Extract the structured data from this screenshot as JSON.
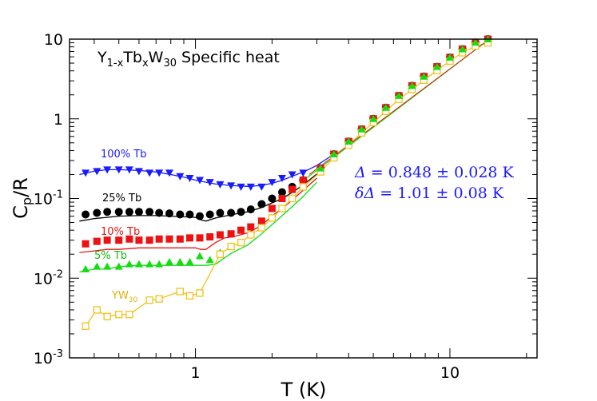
{
  "chart_data": {
    "type": "scatter",
    "scale": "log-log",
    "title": {
      "base": "Y",
      "sub1": "1-x",
      "mid1": "Tb",
      "sub2": "x",
      "mid2": "W",
      "sub3": "30",
      "rest": " Specific heat"
    },
    "xlabel": "T (K)",
    "ylabel": {
      "base": "C",
      "sub": "p",
      "rest": "/R"
    },
    "xlim": [
      0.32,
      22
    ],
    "ylim": [
      0.001,
      10
    ],
    "x_ticks": [
      {
        "value": 1,
        "label": "1"
      },
      {
        "value": 10,
        "label": "10"
      }
    ],
    "y_ticks": [
      {
        "value": 10,
        "base": "10",
        "exp": ""
      },
      {
        "value": 1,
        "base": "1",
        "exp": ""
      },
      {
        "value": 0.1,
        "base": "10",
        "exp": "-1"
      },
      {
        "value": 0.01,
        "base": "10",
        "exp": "-2"
      },
      {
        "value": 0.001,
        "base": "10",
        "exp": "-3"
      }
    ],
    "annotations": {
      "line1": {
        "sym": "Δ",
        "rest": " = 0.848 ± 0.028 K"
      },
      "line2": {
        "sym": "δΔ",
        "rest": " = 1.01 ± 0.08 K"
      }
    },
    "series": [
      {
        "name": "100% Tb",
        "label": "100% Tb",
        "color": "#1a1aff",
        "marker": "triangle-down",
        "x": [
          0.37,
          0.41,
          0.45,
          0.5,
          0.55,
          0.6,
          0.66,
          0.72,
          0.79,
          0.87,
          0.95,
          1.04,
          1.14,
          1.25,
          1.38,
          1.51,
          1.65,
          1.82,
          2.0,
          2.19,
          2.4,
          2.65
        ],
        "y": [
          0.21,
          0.22,
          0.23,
          0.23,
          0.23,
          0.22,
          0.21,
          0.21,
          0.21,
          0.19,
          0.18,
          0.17,
          0.16,
          0.15,
          0.145,
          0.14,
          0.14,
          0.14,
          0.16,
          0.18,
          0.2,
          0.21
        ],
        "fit": {
          "x": [
            0.35,
            0.4,
            0.45,
            0.5,
            0.6,
            0.7,
            0.8,
            0.9,
            1.0,
            1.1,
            1.2,
            1.4,
            1.6,
            1.8,
            2.0,
            2.2,
            2.4,
            2.7,
            3.0,
            3.5
          ],
          "y": [
            0.2,
            0.22,
            0.23,
            0.23,
            0.225,
            0.215,
            0.2,
            0.185,
            0.17,
            0.16,
            0.152,
            0.145,
            0.142,
            0.145,
            0.155,
            0.17,
            0.19,
            0.22,
            0.26,
            0.36
          ]
        }
      },
      {
        "name": "25% Tb",
        "label": "25% Tb",
        "color": "#000000",
        "marker": "circle",
        "x": [
          0.37,
          0.41,
          0.45,
          0.5,
          0.55,
          0.6,
          0.66,
          0.72,
          0.79,
          0.87,
          0.95,
          1.04,
          1.14,
          1.25,
          1.38,
          1.51,
          1.65,
          1.82,
          2.0,
          2.19,
          2.4,
          2.65
        ],
        "y": [
          0.063,
          0.066,
          0.068,
          0.068,
          0.068,
          0.068,
          0.068,
          0.066,
          0.065,
          0.063,
          0.063,
          0.06,
          0.063,
          0.066,
          0.066,
          0.068,
          0.073,
          0.085,
          0.1,
          0.12,
          0.14,
          0.17
        ],
        "fit": {
          "x": [
            0.35,
            0.4,
            0.45,
            0.5,
            0.6,
            0.7,
            0.8,
            0.9,
            1.0,
            1.05,
            1.1,
            1.2,
            1.4,
            1.6,
            1.8,
            2.0,
            2.2,
            2.5,
            2.8,
            3.2
          ],
          "y": [
            0.052,
            0.056,
            0.058,
            0.06,
            0.061,
            0.061,
            0.06,
            0.059,
            0.058,
            0.054,
            0.052,
            0.057,
            0.063,
            0.068,
            0.076,
            0.088,
            0.1,
            0.13,
            0.17,
            0.24
          ]
        }
      },
      {
        "name": "10% Tb",
        "label": "10% Tb",
        "color": "#ee1111",
        "marker": "square",
        "x": [
          0.37,
          0.41,
          0.45,
          0.5,
          0.55,
          0.6,
          0.66,
          0.72,
          0.79,
          0.87,
          0.95,
          1.04,
          1.14,
          1.25,
          1.38,
          1.51,
          1.65,
          1.82,
          2.0,
          2.19,
          2.4,
          2.65
        ],
        "y": [
          0.027,
          0.029,
          0.03,
          0.03,
          0.031,
          0.03,
          0.03,
          0.031,
          0.031,
          0.031,
          0.032,
          0.032,
          0.033,
          0.035,
          0.036,
          0.04,
          0.044,
          0.052,
          0.075,
          0.1,
          0.13,
          0.17
        ],
        "fit": {
          "x": [
            0.35,
            0.4,
            0.45,
            0.5,
            0.6,
            0.7,
            0.8,
            0.9,
            1.0,
            1.05,
            1.1,
            1.2,
            1.3,
            1.4,
            1.6,
            1.8,
            2.0,
            2.3,
            2.6,
            3.0
          ],
          "y": [
            0.021,
            0.022,
            0.023,
            0.023,
            0.024,
            0.024,
            0.024,
            0.024,
            0.024,
            0.023,
            0.023,
            0.028,
            0.032,
            0.033,
            0.037,
            0.045,
            0.06,
            0.085,
            0.12,
            0.18
          ]
        }
      },
      {
        "name": "5% Tb",
        "label": "5% Tb",
        "color": "#11dd11",
        "marker": "triangle-up",
        "x": [
          0.37,
          0.41,
          0.45,
          0.5,
          0.55,
          0.6,
          0.66,
          0.72,
          0.79,
          0.87,
          0.95,
          1.04,
          1.14,
          1.25,
          1.38,
          1.51,
          1.65,
          1.82,
          2.0,
          2.19,
          2.4,
          2.65
        ],
        "y": [
          0.013,
          0.014,
          0.014,
          0.014,
          0.015,
          0.015,
          0.015,
          0.015,
          0.016,
          0.016,
          0.016,
          0.019,
          0.017,
          0.021,
          0.025,
          0.028,
          0.035,
          0.043,
          0.057,
          0.075,
          0.1,
          0.14
        ],
        "fit": {
          "x": [
            0.35,
            0.4,
            0.45,
            0.5,
            0.6,
            0.7,
            0.8,
            0.9,
            1.0,
            1.05,
            1.1,
            1.2,
            1.3,
            1.4,
            1.6,
            1.8,
            2.0,
            2.3,
            2.6,
            3.0
          ],
          "y": [
            0.012,
            0.013,
            0.013,
            0.014,
            0.0145,
            0.0145,
            0.0145,
            0.0145,
            0.0145,
            0.0145,
            0.0145,
            0.015,
            0.018,
            0.021,
            0.026,
            0.035,
            0.047,
            0.07,
            0.1,
            0.16
          ]
        }
      },
      {
        "name": "YW30",
        "label_base": "YW",
        "label_sub": "30",
        "color": "#f2c21a",
        "marker": "open-square",
        "x": [
          0.37,
          0.41,
          0.45,
          0.5,
          0.55,
          0.66,
          0.72,
          0.87,
          0.95,
          1.04,
          1.25,
          1.38,
          1.51,
          1.65,
          1.82,
          2.0,
          2.19,
          2.4,
          2.65
        ],
        "y": [
          0.0025,
          0.004,
          0.0033,
          0.0035,
          0.0035,
          0.0053,
          0.0055,
          0.0068,
          0.006,
          0.0065,
          0.02,
          0.025,
          0.028,
          0.035,
          0.043,
          0.057,
          0.075,
          0.1,
          0.14
        ]
      }
    ],
    "high_t_data": {
      "x": [
        3.1,
        3.5,
        4.0,
        4.5,
        5.0,
        5.6,
        6.3,
        7.1,
        7.9,
        8.9,
        10.0,
        11.2,
        12.6,
        14.1
      ],
      "y": [
        0.24,
        0.36,
        0.52,
        0.74,
        1.0,
        1.38,
        1.95,
        2.6,
        3.4,
        4.5,
        5.9,
        7.5,
        9.1,
        10.0
      ]
    }
  }
}
